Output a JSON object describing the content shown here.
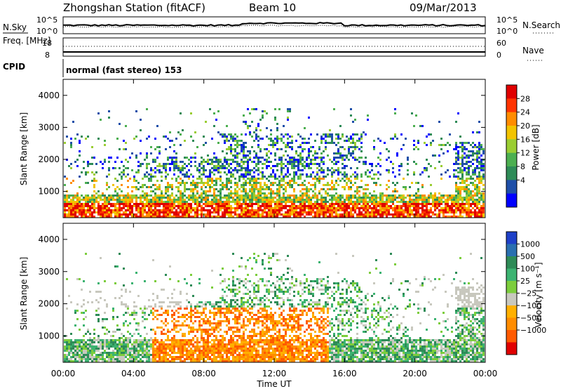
{
  "chart_data": {
    "type": "heatmap",
    "header": {
      "station": "Zhongshan Station (fitACF)",
      "beam": "Beam 10",
      "date": "09/Mar/2013",
      "cpid": "normal (fast stereo) 153"
    },
    "x_axis": {
      "label": "Time UT",
      "ticks": [
        "00:00",
        "04:00",
        "08:00",
        "12:00",
        "16:00",
        "20:00",
        "00:00"
      ],
      "range_hours": [
        0,
        24
      ]
    },
    "top_panels": {
      "nsky": {
        "label": "N.Sky",
        "ticks": [
          "10^5",
          "10^0"
        ],
        "scale": "log"
      },
      "nsearch": {
        "label": "N.Search",
        "ticks": [
          "10^5",
          "10^0"
        ],
        "scale": "log"
      },
      "freq": {
        "label": "Freq. [MHz]",
        "ticks": [
          18,
          8
        ]
      },
      "nave": {
        "label": "Nave",
        "ticks": [
          60,
          0
        ]
      },
      "cpid_label": "CPID"
    },
    "power": {
      "ylabel": "Slant Range [km]",
      "yticks": [
        1000,
        2000,
        3000,
        4000
      ],
      "ylim": [
        180,
        4500
      ],
      "colorbar_label": "Power [dB]",
      "colorbar_ticks": [
        4,
        8,
        12,
        16,
        20,
        24,
        28
      ],
      "colors": [
        "#0000ff",
        "#1e4fa8",
        "#2e8b57",
        "#4caf50",
        "#9acd32",
        "#f2c300",
        "#ff8c00",
        "#ff3300",
        "#e00000"
      ]
    },
    "velocity": {
      "ylabel": "Slant Range [km]",
      "yticks": [
        1000,
        2000,
        3000,
        4000
      ],
      "ylim": [
        180,
        4500
      ],
      "colorbar_label": "Velocity [m s⁻¹]",
      "colorbar_ticks": [
        "1000",
        "500",
        "100",
        "25",
        "−25",
        "−100",
        "−500",
        "−1000"
      ],
      "colors": [
        "#1e40c8",
        "#2a6fb0",
        "#2e8b57",
        "#3cb371",
        "#7ccd3c",
        "#c8c8be",
        "#ffb000",
        "#ff8c00",
        "#ff5a00",
        "#e00000"
      ]
    }
  }
}
